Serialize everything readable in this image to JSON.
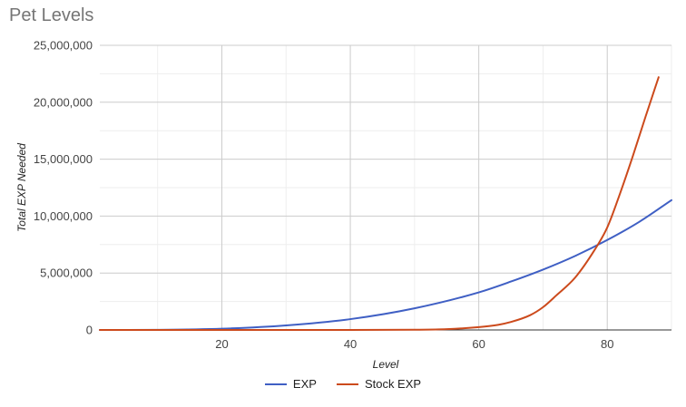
{
  "chart_data": {
    "type": "line",
    "title": "Pet Levels",
    "xlabel": "Level",
    "ylabel": "Total EXP Needed",
    "xlim": [
      1,
      90
    ],
    "ylim": [
      0,
      25000000
    ],
    "x_ticks": [
      20,
      40,
      60,
      80
    ],
    "x_tick_labels": [
      "20",
      "40",
      "60",
      "80"
    ],
    "y_ticks": [
      0,
      5000000,
      10000000,
      15000000,
      20000000,
      25000000
    ],
    "y_tick_labels": [
      "0",
      "5,000,000",
      "10,000,000",
      "15,000,000",
      "20,000,000",
      "25,000,000"
    ],
    "grid": true,
    "legend_position": "bottom",
    "series": [
      {
        "name": "EXP",
        "color": "#3f5fc4",
        "x": [
          1,
          10,
          20,
          30,
          40,
          50,
          60,
          65,
          70,
          75,
          80,
          85,
          90
        ],
        "y": [
          0,
          10000,
          110000,
          400000,
          950000,
          1900000,
          3300000,
          4250000,
          5300000,
          6500000,
          7900000,
          9500000,
          11400000
        ]
      },
      {
        "name": "Stock EXP",
        "color": "#cc4a1c",
        "x": [
          1,
          20,
          40,
          50,
          55,
          60,
          63,
          65,
          68,
          70,
          72,
          75,
          78,
          80,
          82,
          84,
          86,
          88
        ],
        "y": [
          0,
          0,
          5000,
          20000,
          70000,
          250000,
          450000,
          700000,
          1300000,
          2000000,
          3000000,
          4600000,
          7000000,
          9000000,
          12000000,
          15300000,
          18800000,
          22200000
        ]
      }
    ]
  }
}
